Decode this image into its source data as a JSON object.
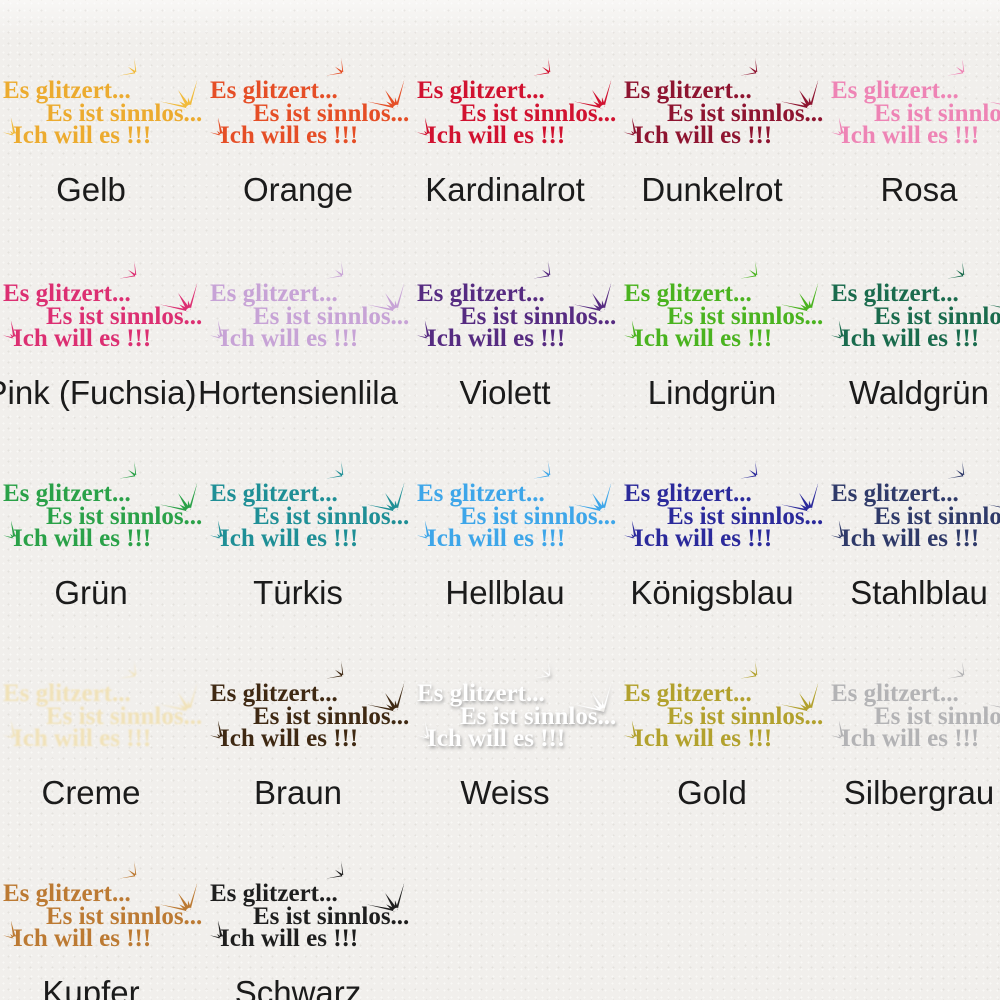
{
  "page": {
    "background": "#f1efec",
    "label_color": "#1b1b1b",
    "description_visible_text_only": true
  },
  "design": {
    "line1": "Es glitzert...",
    "line2": "Es ist sinnlos...",
    "line3": "Ich will es !!!"
  },
  "icons": {
    "big_star": "sparkle-burst-icon",
    "small_star": "sparkle-small-icon",
    "left_star": "sparkle-ring-icon"
  },
  "swatches": [
    {
      "label": "Gelb",
      "color": "#ecab2f",
      "star_color": "#f1bb3c",
      "row": 0,
      "col": 0,
      "style": ""
    },
    {
      "label": "Orange",
      "color": "#e54e26",
      "row": 0,
      "col": 1,
      "style": ""
    },
    {
      "label": "Kardinalrot",
      "color": "#d11230",
      "row": 0,
      "col": 2,
      "style": ""
    },
    {
      "label": "Dunkelrot",
      "color": "#8e1430",
      "row": 0,
      "col": 3,
      "style": ""
    },
    {
      "label": "Rosa",
      "color": "#ee84b5",
      "row": 0,
      "col": 4,
      "style": ""
    },
    {
      "label": "Pink (Fuchsia)",
      "color": "#dc2f72",
      "row": 1,
      "col": 0,
      "style": ""
    },
    {
      "label": "Hortensienlila",
      "color": "#c7a3d6",
      "row": 1,
      "col": 1,
      "style": ""
    },
    {
      "label": "Violett",
      "color": "#562b81",
      "row": 1,
      "col": 2,
      "style": ""
    },
    {
      "label": "Lindgrün",
      "color": "#4ab31f",
      "row": 1,
      "col": 3,
      "style": ""
    },
    {
      "label": "Waldgrün",
      "color": "#1a6b4d",
      "row": 1,
      "col": 4,
      "style": ""
    },
    {
      "label": "Grün",
      "color": "#2aa148",
      "row": 2,
      "col": 0,
      "style": ""
    },
    {
      "label": "Türkis",
      "color": "#1f8f96",
      "row": 2,
      "col": 1,
      "style": ""
    },
    {
      "label": "Hellblau",
      "color": "#3ea6e9",
      "row": 2,
      "col": 2,
      "style": ""
    },
    {
      "label": "Königsblau",
      "color": "#2b2a9b",
      "row": 2,
      "col": 3,
      "style": ""
    },
    {
      "label": "Stahlblau",
      "color": "#2f3a69",
      "row": 2,
      "col": 4,
      "style": ""
    },
    {
      "label": "Creme",
      "color": "#f1e1b3",
      "row": 3,
      "col": 0,
      "style": "soft"
    },
    {
      "label": "Braun",
      "color": "#3f2913",
      "row": 3,
      "col": 1,
      "style": ""
    },
    {
      "label": "Weiss",
      "color": "#ffffff",
      "row": 3,
      "col": 2,
      "style": "emboss"
    },
    {
      "label": "Gold",
      "color": "#b2a12d",
      "row": 3,
      "col": 3,
      "style": ""
    },
    {
      "label": "Silbergrau",
      "color": "#b3b3b5",
      "row": 3,
      "col": 4,
      "style": ""
    },
    {
      "label": "Kupfer",
      "color": "#bc7a33",
      "row": 4,
      "col": 0,
      "style": ""
    },
    {
      "label": "Schwarz",
      "color": "#1e1e1e",
      "row": 4,
      "col": 1,
      "style": ""
    }
  ]
}
